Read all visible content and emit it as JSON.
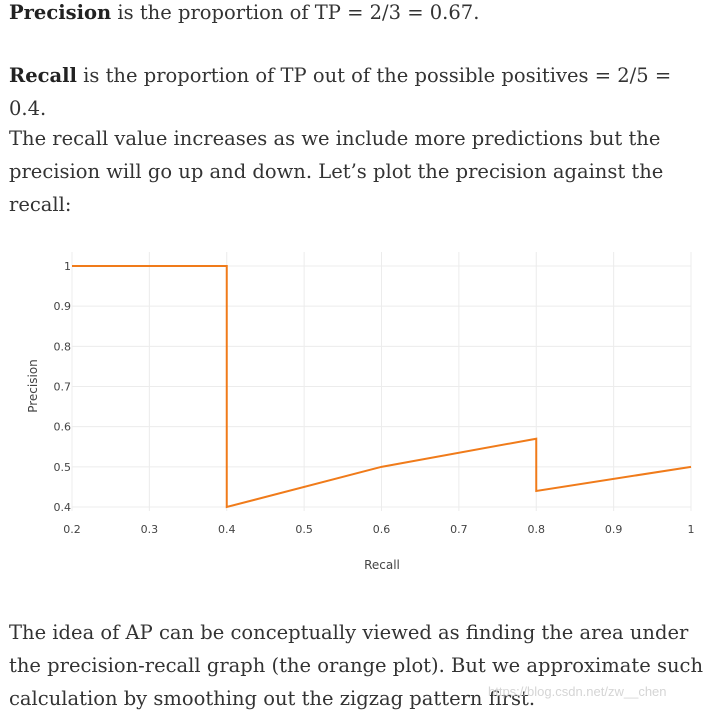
{
  "paragraphs": {
    "p1": {
      "bold": "Precision",
      "rest": " is the proportion of TP = 2/3 = 0.67."
    },
    "p2": {
      "bold": "Recall",
      "rest": " is the proportion of TP out of the possible positives = 2/5 = 0.4."
    },
    "p3": "The recall value increases as we include more predictions but the precision will go up and down. Let’s plot the precision against the recall:",
    "p4": "The idea of AP can be conceptually viewed as finding the area under the precision-recall graph (the orange plot). But we approximate such calculation by smoothing out the zigzag pattern first."
  },
  "watermark": "https://blog.csdn.net/zw__chen",
  "chart_data": {
    "type": "line",
    "xlabel": "Recall",
    "ylabel": "Precision",
    "xlim": [
      0.2,
      1
    ],
    "ylim": [
      0.4,
      1
    ],
    "xticks": [
      0.2,
      0.3,
      0.4,
      0.5,
      0.6,
      0.7,
      0.8,
      0.9,
      1
    ],
    "xtick_labels": [
      "0.2",
      "0.3",
      "0.4",
      "0.5",
      "0.6",
      "0.7",
      "0.8",
      "0.9",
      "1"
    ],
    "yticks": [
      0.4,
      0.5,
      0.6,
      0.7,
      0.8,
      0.9,
      1
    ],
    "ytick_labels": [
      "0.4",
      "0.5",
      "0.6",
      "0.7",
      "0.8",
      "0.9",
      "1"
    ],
    "grid": true,
    "color": "#f07b1a",
    "series": [
      {
        "x": [
          0.2,
          0.4,
          0.4,
          0.6,
          0.8,
          0.8,
          1.0
        ],
        "y": [
          1.0,
          1.0,
          0.4,
          0.5,
          0.57,
          0.44,
          0.5
        ]
      }
    ]
  }
}
